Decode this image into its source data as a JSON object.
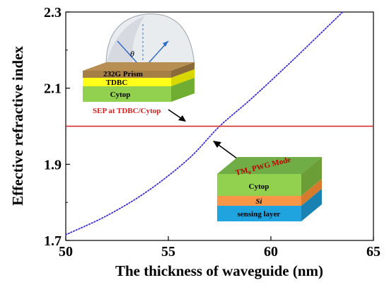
{
  "chart_data": {
    "type": "line",
    "xlabel": "The thickness of waveguide (nm)",
    "ylabel": "Effective refractive index",
    "xlim": [
      50,
      65
    ],
    "ylim": [
      1.7,
      2.3
    ],
    "xticks": [
      "50",
      "55",
      "60",
      "65"
    ],
    "yticks": [
      "1.7",
      "1.9",
      "2.1",
      "2.3"
    ],
    "grid": false,
    "series": [
      {
        "name": "TM0 PWG Mode",
        "style": "dotted",
        "color": "#3b2fd6",
        "x": [
          50,
          52,
          54,
          56,
          57.5,
          59,
          61,
          63.5
        ],
        "y": [
          1.715,
          1.765,
          1.83,
          1.915,
          2.0,
          2.07,
          2.17,
          2.3
        ]
      },
      {
        "name": "SEP at TDBC/Cytop",
        "style": "solid",
        "color": "#d62020",
        "x": [
          50,
          65
        ],
        "y": [
          2.0,
          2.0
        ]
      }
    ],
    "annotations": {
      "sep_label": "SEP at TDBC/Cytop",
      "mode_label": "TM",
      "mode_subscript": "0",
      "mode_suffix": " PWG Mode"
    }
  },
  "inset_top": {
    "theta": "θ",
    "layers": [
      "232G Prism",
      "TDBC",
      "Cytop"
    ]
  },
  "inset_bottom": {
    "layers": [
      "Cytop",
      "Si",
      "sensing layer"
    ]
  },
  "colors": {
    "prism": "#a57f46",
    "tdbc": "#ffff1a",
    "cytop": "#92d050",
    "si": "#f79646",
    "sensing": "#1fa4e0",
    "red_line": "#d62020",
    "dotted_curve": "#3b2fd6"
  }
}
